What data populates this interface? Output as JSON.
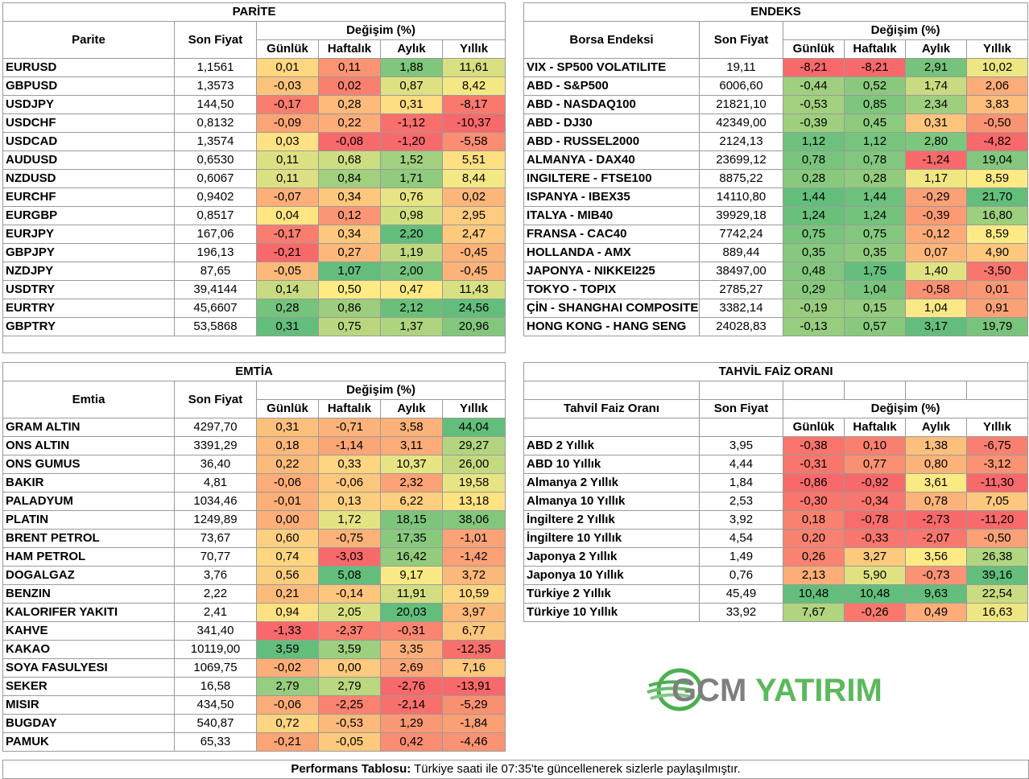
{
  "parite": {
    "title": "PARİTE",
    "col_name": "Parite",
    "col_price": "Son Fiyat",
    "col_change": "Değişim (%)",
    "periods": [
      "Günlük",
      "Haftalık",
      "Aylık",
      "Yıllık"
    ],
    "rows": [
      [
        "EURUSD",
        "1,1561",
        "0,01",
        "0,11",
        "1,88",
        "11,61"
      ],
      [
        "GBPUSD",
        "1,3573",
        "-0,03",
        "0,02",
        "0,87",
        "8,42"
      ],
      [
        "USDJPY",
        "144,50",
        "-0,17",
        "0,28",
        "0,31",
        "-8,17"
      ],
      [
        "USDCHF",
        "0,8132",
        "-0,09",
        "0,22",
        "-1,12",
        "-10,37"
      ],
      [
        "USDCAD",
        "1,3574",
        "0,03",
        "-0,08",
        "-1,20",
        "-5,58"
      ],
      [
        "AUDUSD",
        "0,6530",
        "0,11",
        "0,68",
        "1,52",
        "5,51"
      ],
      [
        "NZDUSD",
        "0,6067",
        "0,11",
        "0,84",
        "1,71",
        "8,44"
      ],
      [
        "EURCHF",
        "0,9402",
        "-0,07",
        "0,34",
        "0,76",
        "0,02"
      ],
      [
        "EURGBP",
        "0,8517",
        "0,04",
        "0,12",
        "0,98",
        "2,95"
      ],
      [
        "EURJPY",
        "167,06",
        "-0,17",
        "0,34",
        "2,20",
        "2,47"
      ],
      [
        "GBPJPY",
        "196,13",
        "-0,21",
        "0,27",
        "1,19",
        "-0,45"
      ],
      [
        "NZDJPY",
        "87,65",
        "-0,05",
        "1,07",
        "2,00",
        "-0,45"
      ],
      [
        "USDTRY",
        "39,4144",
        "0,14",
        "0,50",
        "0,47",
        "11,43"
      ],
      [
        "EURTRY",
        "45,6607",
        "0,28",
        "0,86",
        "2,12",
        "24,56"
      ],
      [
        "GBPTRY",
        "53,5868",
        "0,31",
        "0,75",
        "1,37",
        "20,96"
      ]
    ]
  },
  "endeks": {
    "title": "ENDEKS",
    "col_name": "Borsa Endeksi",
    "col_price": "Son Fiyat",
    "col_change": "Değişim (%)",
    "periods": [
      "Günlük",
      "Haftalık",
      "Aylık",
      "Yıllık"
    ],
    "rows": [
      [
        "VIX  - SP500 VOLATILITE",
        "19,11",
        "-8,21",
        "-8,21",
        "2,91",
        "10,02"
      ],
      [
        "ABD - S&P500",
        "6006,60",
        "-0,44",
        "0,52",
        "1,74",
        "2,06"
      ],
      [
        "ABD - NASDAQ100",
        "21821,10",
        "-0,53",
        "0,85",
        "2,34",
        "3,83"
      ],
      [
        "ABD - DJ30",
        "42349,00",
        "-0,39",
        "0,45",
        "0,31",
        "-0,50"
      ],
      [
        "ABD - RUSSEL2000",
        "2124,13",
        "1,12",
        "1,12",
        "2,80",
        "-4,82"
      ],
      [
        "ALMANYA - DAX40",
        "23699,12",
        "0,78",
        "0,78",
        "-1,24",
        "19,04"
      ],
      [
        "INGILTERE - FTSE100",
        "8875,22",
        "0,28",
        "0,28",
        "1,17",
        "8,59"
      ],
      [
        "ISPANYA - IBEX35",
        "14110,80",
        "1,44",
        "1,44",
        "-0,29",
        "21,70"
      ],
      [
        "ITALYA - MIB40",
        "39929,18",
        "1,24",
        "1,24",
        "-0,39",
        "16,80"
      ],
      [
        "FRANSA - CAC40",
        "7742,24",
        "0,75",
        "0,75",
        "-0,12",
        "8,59"
      ],
      [
        "HOLLANDA - AMX",
        "889,44",
        "0,35",
        "0,35",
        "0,07",
        "4,90"
      ],
      [
        "JAPONYA - NIKKEI225",
        "38497,00",
        "0,48",
        "1,75",
        "1,40",
        "-3,50"
      ],
      [
        "TOKYO - TOPIX",
        "2785,27",
        "0,29",
        "1,04",
        "-0,58",
        "0,01"
      ],
      [
        "ÇİN - SHANGHAI COMPOSITE",
        "3382,14",
        "-0,19",
        "0,15",
        "1,04",
        "0,91"
      ],
      [
        "HONG KONG - HANG SENG",
        "24028,83",
        "-0,13",
        "0,57",
        "3,17",
        "19,79"
      ]
    ]
  },
  "emtia": {
    "title": "EMTİA",
    "col_name": "Emtia",
    "col_price": "Son Fiyat",
    "col_change": "Değişim (%)",
    "periods": [
      "Günlük",
      "Haftalık",
      "Aylık",
      "Yıllık"
    ],
    "rows": [
      [
        "GRAM ALTIN",
        "4297,70",
        "0,31",
        "-0,71",
        "3,58",
        "44,04"
      ],
      [
        "ONS ALTIN",
        "3391,29",
        "0,18",
        "-1,14",
        "3,11",
        "29,27"
      ],
      [
        "ONS GUMUS",
        "36,40",
        "0,22",
        "0,33",
        "10,37",
        "26,00"
      ],
      [
        "BAKIR",
        "4,81",
        "-0,06",
        "-0,06",
        "2,32",
        "19,58"
      ],
      [
        "PALADYUM",
        "1034,46",
        "-0,01",
        "0,13",
        "6,22",
        "13,18"
      ],
      [
        "PLATIN",
        "1249,89",
        "0,00",
        "1,72",
        "18,15",
        "38,06"
      ],
      [
        "BRENT PETROL",
        "73,67",
        "0,60",
        "-0,75",
        "17,35",
        "-1,01"
      ],
      [
        "HAM PETROL",
        "70,77",
        "0,74",
        "-3,03",
        "16,42",
        "-1,42"
      ],
      [
        "DOGALGAZ",
        "3,76",
        "0,56",
        "5,08",
        "9,17",
        "3,72"
      ],
      [
        "BENZIN",
        "2,22",
        "0,21",
        "-0,14",
        "11,91",
        "10,59"
      ],
      [
        "KALORIFER YAKITI",
        "2,41",
        "0,94",
        "2,05",
        "20,03",
        "3,97"
      ],
      [
        "KAHVE",
        "341,40",
        "-1,33",
        "-2,37",
        "-0,31",
        "6,77"
      ],
      [
        "KAKAO",
        "10119,00",
        "3,59",
        "3,59",
        "3,35",
        "-12,35"
      ],
      [
        "SOYA FASULYESI",
        "1069,75",
        "-0,02",
        "0,00",
        "2,69",
        "7,16"
      ],
      [
        "SEKER",
        "16,58",
        "2,79",
        "2,79",
        "-2,76",
        "-13,91"
      ],
      [
        "MISIR",
        "434,50",
        "-0,06",
        "-2,25",
        "-2,14",
        "-5,29"
      ],
      [
        "BUGDAY",
        "540,87",
        "0,72",
        "-0,53",
        "1,29",
        "-1,84"
      ],
      [
        "PAMUK",
        "65,33",
        "-0,21",
        "-0,05",
        "0,42",
        "-4,46"
      ]
    ]
  },
  "tahvil": {
    "title": "TAHVİL FAİZ ORANI",
    "col_name": "Tahvil Faiz Oranı",
    "col_price": "Son Fiyat",
    "col_change": "Değişim (%)",
    "periods": [
      "Günlük",
      "Haftalık",
      "Aylık",
      "Yıllık"
    ],
    "rows": [
      [
        "ABD 2 Yıllık",
        "3,95",
        "-0,38",
        "0,10",
        "1,38",
        "-6,75"
      ],
      [
        "ABD 10 Yıllık",
        "4,44",
        "-0,31",
        "0,77",
        "0,80",
        "-3,12"
      ],
      [
        "Almanya 2 Yıllık",
        "1,84",
        "-0,86",
        "-0,92",
        "3,61",
        "-11,30"
      ],
      [
        "Almanya 10 Yıllık",
        "2,53",
        "-0,30",
        "-0,34",
        "0,78",
        "7,05"
      ],
      [
        "İngiltere 2 Yıllık",
        "3,92",
        "0,18",
        "-0,78",
        "-2,73",
        "-11,20"
      ],
      [
        "İngiltere 10 Yıllık",
        "4,54",
        "0,20",
        "-0,33",
        "-2,07",
        "-0,50"
      ],
      [
        "Japonya 2 Yıllık",
        "1,49",
        "0,26",
        "3,27",
        "3,56",
        "26,38"
      ],
      [
        "Japonya 10 Yıllık",
        "0,76",
        "2,13",
        "5,90",
        "-0,73",
        "39,16"
      ],
      [
        "Türkiye 2 Yıllık",
        "45,49",
        "10,48",
        "10,48",
        "9,63",
        "22,54"
      ],
      [
        "Türkiye 10 Yıllık",
        "33,92",
        "7,67",
        "-0,26",
        "0,49",
        "16,63"
      ]
    ]
  },
  "footer": {
    "bold": "Performans Tablosu:",
    "text": " Türkiye saati ile 07:35'te güncellenerek sizlerle paylaşılmıştır."
  },
  "logo": {
    "part1": "GCM",
    "part2": "YATIRIM",
    "color_gray": "#7f7f7f",
    "color_green": "#5cb85c"
  },
  "colors": {
    "scale_red": "#f8696b",
    "scale_yellow": "#ffeb84",
    "scale_green": "#63be7b"
  }
}
